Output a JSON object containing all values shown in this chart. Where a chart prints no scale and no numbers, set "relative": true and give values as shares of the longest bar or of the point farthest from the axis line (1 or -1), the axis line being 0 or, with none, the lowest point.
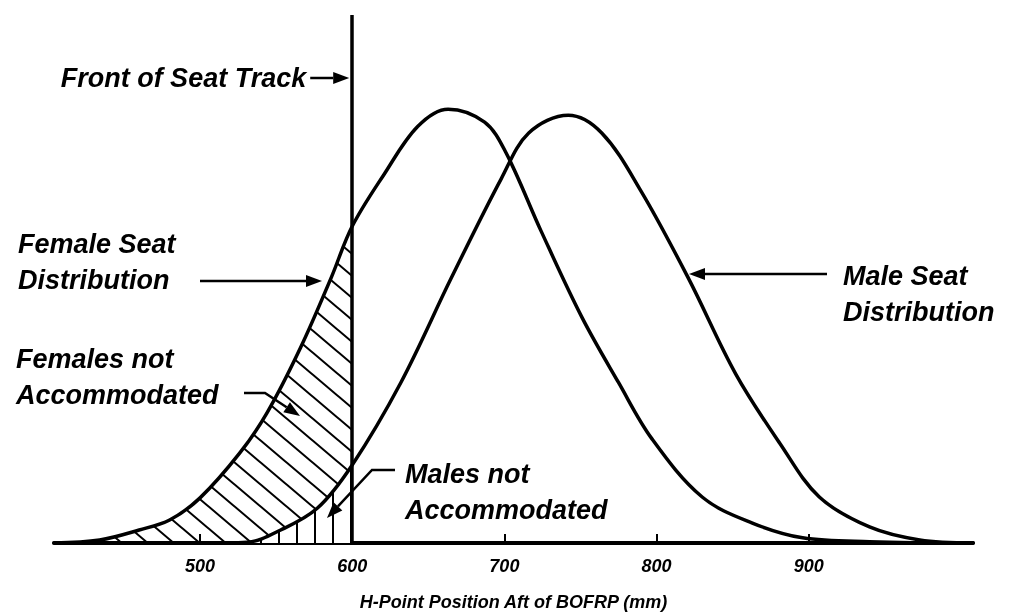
{
  "chart_data": {
    "type": "line",
    "relative": true,
    "xlabel": "H-Point Position Aft of BOFRP (mm)",
    "xlim": [
      404,
      1008
    ],
    "xticks": [
      500,
      600,
      700,
      800,
      900
    ],
    "marker": "none",
    "line_style": "solid",
    "series": [
      {
        "color": "#000000",
        "x": [
          404,
          434,
          460,
          480,
          500,
          526,
          544,
          566,
          586,
          600,
          621,
          643,
          663,
          687,
          701,
          724,
          751,
          775,
          797,
          830,
          863,
          896,
          940,
          1008
        ],
        "values": [
          0,
          0.007,
          0.03,
          0.053,
          0.104,
          0.207,
          0.3,
          0.45,
          0.61,
          0.73,
          0.85,
          0.96,
          1,
          0.97,
          0.9,
          0.72,
          0.52,
          0.37,
          0.24,
          0.106,
          0.046,
          0.012,
          0.003,
          0
        ]
      },
      {
        "color": "#000000",
        "x": [
          500,
          531,
          553,
          577,
          600,
          632,
          665,
          698,
          716,
          742,
          764,
          790,
          821,
          852,
          881,
          907,
          940,
          973,
          1008
        ],
        "values": [
          0,
          0.002,
          0.03,
          0.08,
          0.18,
          0.37,
          0.61,
          0.84,
          0.945,
          0.986,
          0.945,
          0.81,
          0.61,
          0.39,
          0.23,
          0.106,
          0.037,
          0.007,
          0
        ]
      },
      {
        "type": "area",
        "color": "#000000",
        "x": [
          404,
          434,
          460,
          480,
          500,
          526,
          544,
          566,
          586,
          600
        ],
        "values": [
          0,
          0.007,
          0.03,
          0.053,
          0.104,
          0.207,
          0.3,
          0.45,
          0.61,
          0.73
        ]
      },
      {
        "type": "area",
        "color": "#000000",
        "x": [
          500,
          531,
          553,
          577,
          600
        ],
        "values": [
          0,
          0.002,
          0.03,
          0.08,
          0.18
        ]
      }
    ],
    "ref_lines": [
      {
        "axis": "x",
        "value": 600,
        "label": "Front of Seat Track",
        "color": "#000000",
        "line_style": "solid"
      }
    ],
    "annotations": [
      "Female Seat Distribution",
      "Females not Accommodated",
      "Males not Accommodated",
      "Male Seat Distribution"
    ]
  }
}
